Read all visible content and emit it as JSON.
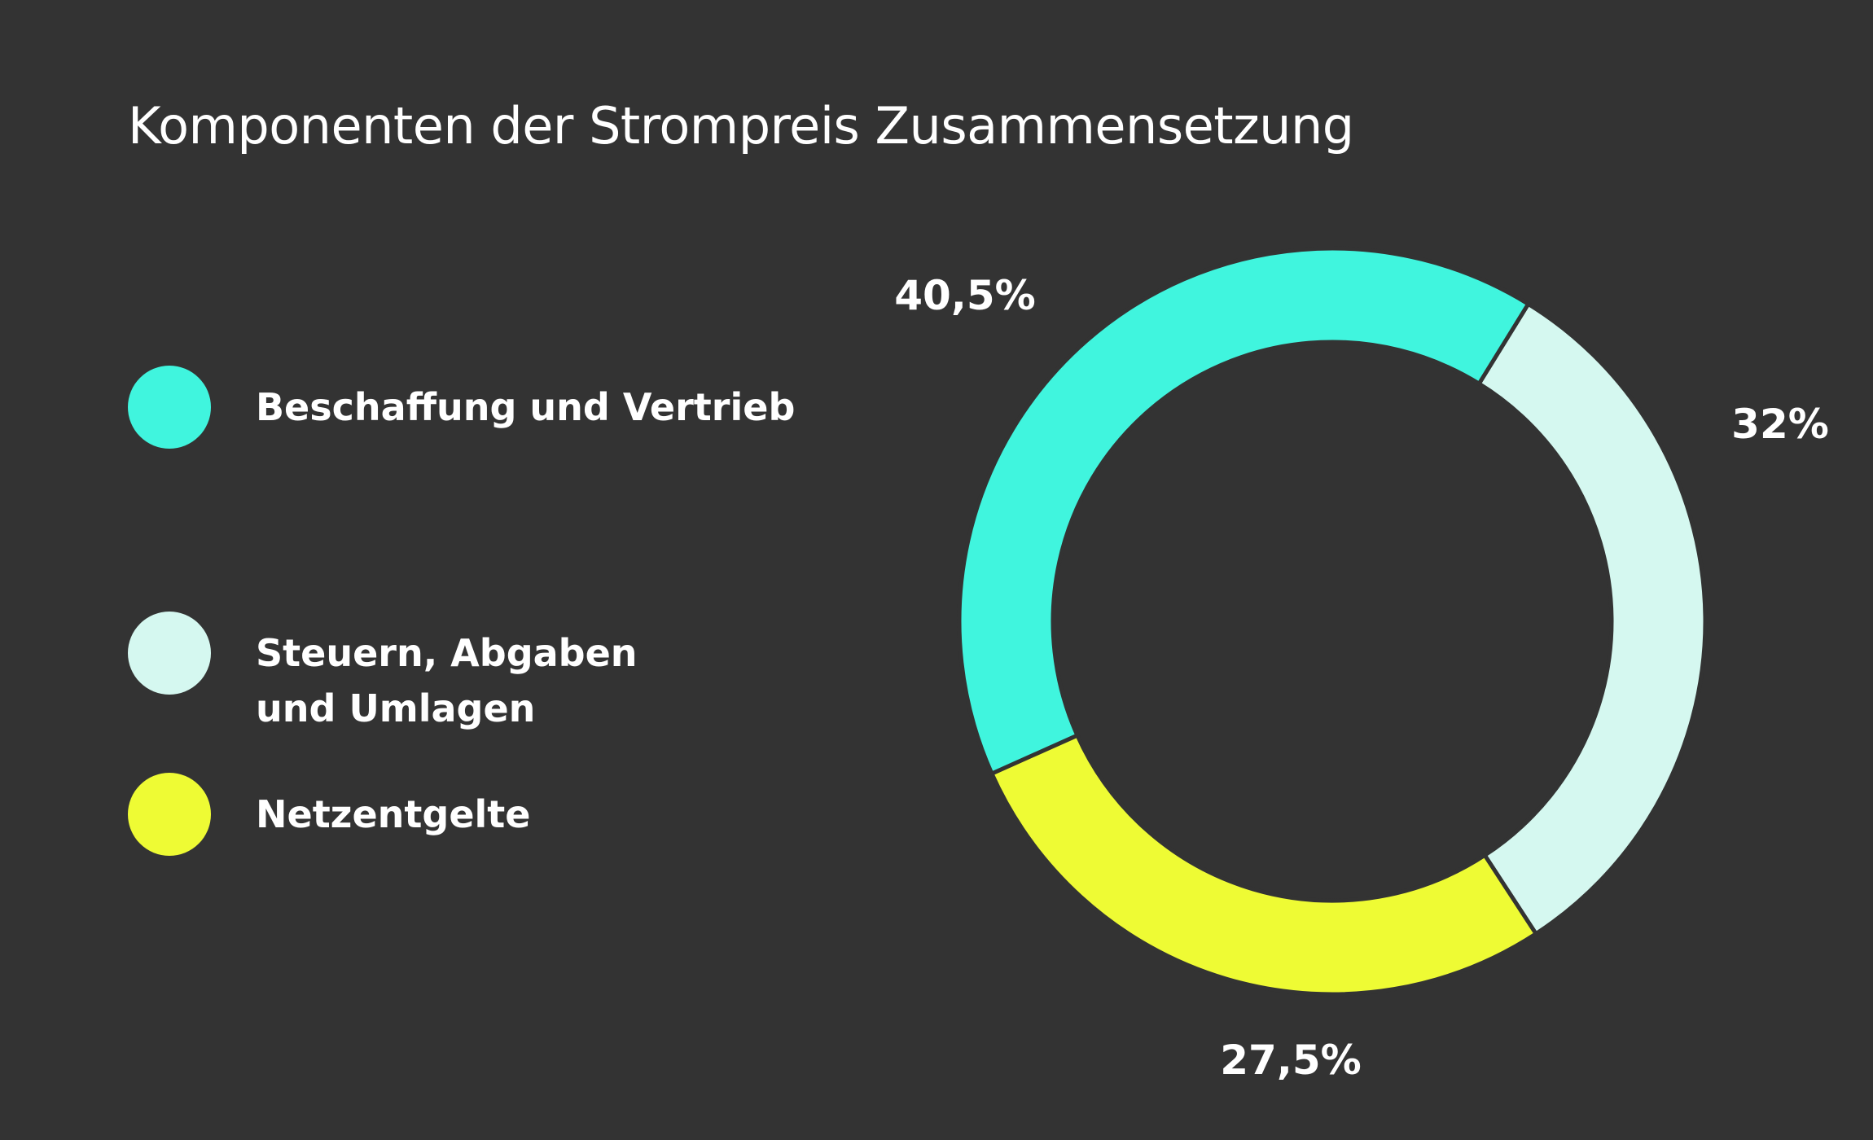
{
  "chart_data": {
    "type": "pie",
    "variant": "donut",
    "title": "Komponenten der Strompreis Zusammensetzung",
    "legend_position": "left",
    "unit": "%",
    "slices": [
      {
        "label": "Beschaffung und Vertrieb",
        "value": 40.5,
        "value_label": "40,5%",
        "color": "#40F5DE"
      },
      {
        "label": "Steuern, Abgaben\nund Umlagen",
        "value": 32,
        "value_label": "32%",
        "color": "#D5F8F0"
      },
      {
        "label": "Netzentgelte",
        "value": 27.5,
        "value_label": "27,5%",
        "color": "#EEFB34"
      }
    ]
  },
  "background_color": "#333333"
}
